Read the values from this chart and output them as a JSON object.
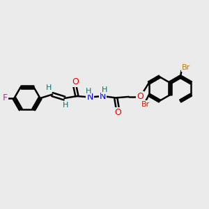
{
  "bg_color": "#ebebeb",
  "bond_color": "#000000",
  "bond_width": 1.8,
  "atom_colors": {
    "F": "#ee00ee",
    "O": "#ee0000",
    "N": "#0000ee",
    "Br_orange": "#cc7700",
    "Br_peri": "#cc2200",
    "H": "#007777",
    "C": "#000000"
  },
  "font_size": 8,
  "fig_size": [
    3.0,
    3.0
  ],
  "dpi": 100
}
